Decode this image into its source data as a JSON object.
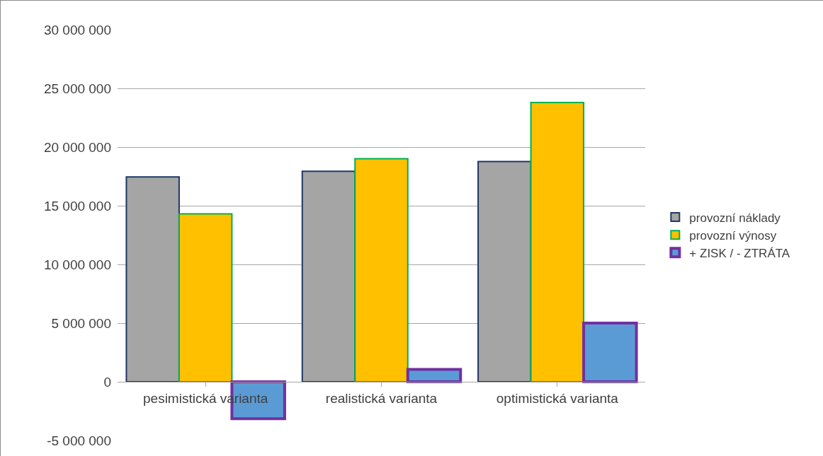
{
  "chart_data": {
    "type": "bar",
    "categories": [
      "pesimistická varianta",
      "realistická varianta",
      "optimistická varianta"
    ],
    "series": [
      {
        "name": "provozní náklady",
        "color": "#a5a5a5",
        "values": [
          17450000,
          17930000,
          18770000
        ]
      },
      {
        "name": "provozní výnosy",
        "color": "#ffc000",
        "values": [
          14300000,
          19000000,
          23800000
        ]
      },
      {
        "name": "+ ZISK / - ZTRÁTA",
        "color": "#5b9bd5",
        "values": [
          -3150000,
          1050000,
          5000000
        ]
      }
    ],
    "ylim": [
      -5000000,
      30000000
    ],
    "yticks": [
      {
        "value": -5000000,
        "label": "-5 000 000"
      },
      {
        "value": 0,
        "label": "0"
      },
      {
        "value": 5000000,
        "label": "5 000 000"
      },
      {
        "value": 10000000,
        "label": "10 000 000"
      },
      {
        "value": 15000000,
        "label": "15 000 000"
      },
      {
        "value": 20000000,
        "label": "20 000 000"
      },
      {
        "value": 25000000,
        "label": "25 000 000"
      },
      {
        "value": 30000000,
        "label": "30 000 000"
      }
    ],
    "grid": "y",
    "legend": "right"
  }
}
